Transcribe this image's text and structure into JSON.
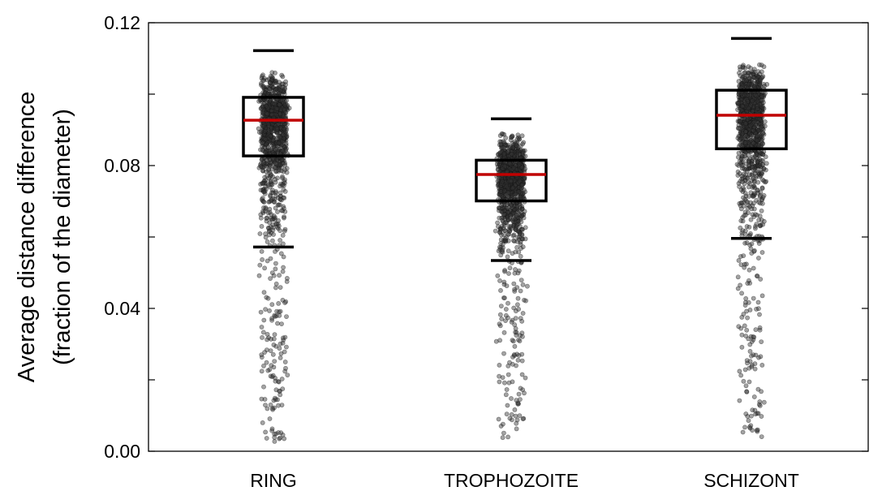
{
  "chart_data": {
    "type": "box",
    "ylabel": [
      "Average distance difference",
      "(fraction of the diameter)"
    ],
    "xlabel": "",
    "ylim": [
      0.0,
      0.12
    ],
    "yticks": [
      0.0,
      0.02,
      0.04,
      0.06,
      0.08,
      0.1,
      0.12
    ],
    "ytick_labels": [
      {
        "value": 0.0,
        "label": "0.00"
      },
      {
        "value": 0.04,
        "label": "0.04"
      },
      {
        "value": 0.08,
        "label": "0.08"
      },
      {
        "value": 0.12,
        "label": "0.12"
      }
    ],
    "categories": [
      "RING",
      "TROPHOZOITE",
      "SCHIZONT"
    ],
    "boxes": [
      {
        "category": "RING",
        "whisker_low": 0.0572,
        "q1": 0.0827,
        "median": 0.0927,
        "q3": 0.0991,
        "whisker_high": 0.1122,
        "points_min": 0.0025,
        "points_max": 0.109
      },
      {
        "category": "TROPHOZOITE",
        "whisker_low": 0.0534,
        "q1": 0.0701,
        "median": 0.0775,
        "q3": 0.0815,
        "whisker_high": 0.0931,
        "points_min": 0.003,
        "points_max": 0.093
      },
      {
        "category": "SCHIZONT",
        "whisker_low": 0.0596,
        "q1": 0.0847,
        "median": 0.0941,
        "q3": 0.1011,
        "whisker_high": 0.1156,
        "points_min": 0.004,
        "points_max": 0.115
      }
    ],
    "colors": {
      "box": "#000000",
      "median": "#c00000",
      "points": "#333333"
    },
    "grid": false,
    "legend": "none"
  }
}
